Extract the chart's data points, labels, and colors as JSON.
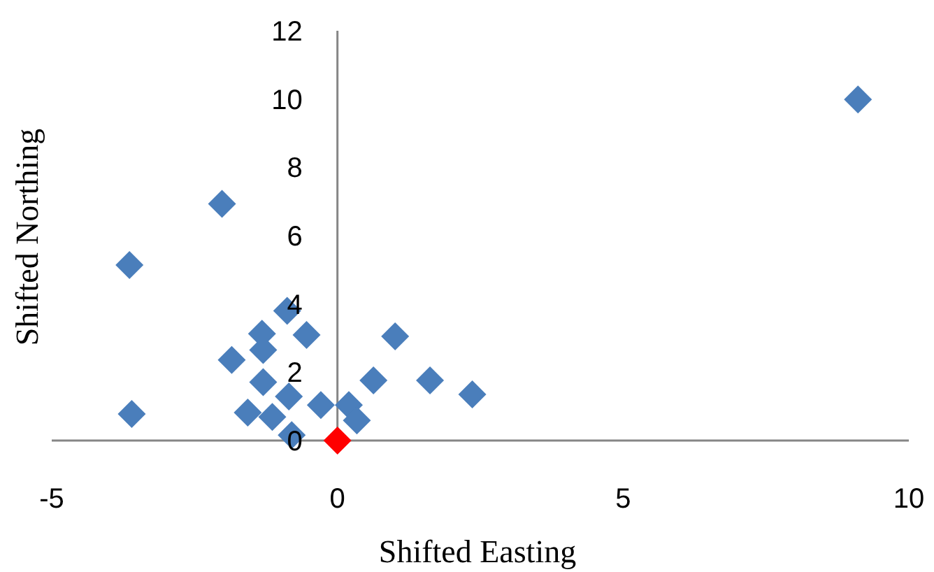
{
  "chart_data": {
    "type": "scatter",
    "xlabel": "Shifted Easting",
    "ylabel": "Shifted Northing",
    "xlim": [
      -5,
      10
    ],
    "ylim": [
      0,
      12
    ],
    "xticks": [
      -5,
      0,
      5,
      10
    ],
    "yticks": [
      0,
      2,
      4,
      6,
      8,
      10,
      12
    ],
    "grid": false,
    "marker": "diamond",
    "series": [
      {
        "color": "#4a7ebb",
        "x": [
          -3.64,
          -0.88,
          -1.32,
          -0.54,
          1.01,
          -1.3,
          -1.85,
          -1.3,
          0.63,
          1.62,
          2.36,
          -0.85,
          -0.29,
          0.2,
          -3.6,
          -1.57,
          -1.14,
          0.34,
          -0.8,
          -2.02,
          9.11
        ],
        "values": [
          5.14,
          3.8,
          3.13,
          3.09,
          3.05,
          2.65,
          2.36,
          1.71,
          1.76,
          1.76,
          1.35,
          1.29,
          1.04,
          1.04,
          0.78,
          0.82,
          0.69,
          0.59,
          0.16,
          6.93,
          9.99
        ]
      },
      {
        "color": "#ff0000",
        "x": [
          0
        ],
        "values": [
          0
        ]
      }
    ]
  }
}
